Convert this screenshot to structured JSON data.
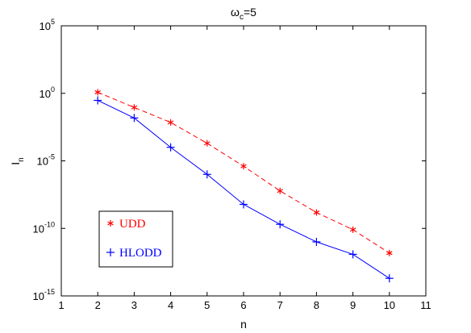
{
  "chart_data": {
    "type": "line",
    "title": "ω",
    "title_sub": "c",
    "title_suffix": "=5",
    "xlabel": "n",
    "ylabel": "I",
    "ylabel_sub": "n",
    "xlim": [
      1,
      11
    ],
    "ylim_exponent": [
      -15,
      5
    ],
    "yscale": "log",
    "x_ticks": [
      "1",
      "2",
      "3",
      "4",
      "5",
      "6",
      "7",
      "8",
      "9",
      "10",
      "11"
    ],
    "y_ticks": [
      {
        "exp": 5,
        "base": "10",
        "sup": "5"
      },
      {
        "exp": 0,
        "base": "10",
        "sup": "0"
      },
      {
        "exp": -5,
        "base": "10",
        "sup": "-5"
      },
      {
        "exp": -10,
        "base": "10",
        "sup": "-10"
      },
      {
        "exp": -15,
        "base": "10",
        "sup": "-15"
      }
    ],
    "grid": false,
    "legend_position": "lower-left",
    "x": [
      2,
      3,
      4,
      5,
      6,
      7,
      8,
      9,
      10
    ],
    "series": [
      {
        "name": "UDD",
        "color": "#ff0000",
        "line_style": "dashed",
        "marker": "*",
        "values": [
          1.2,
          0.09,
          0.007,
          0.0002,
          4e-06,
          6e-08,
          1.5e-09,
          8e-11,
          1.5e-12
        ]
      },
      {
        "name": "HLODD",
        "color": "#0000ff",
        "line_style": "solid",
        "marker": "+",
        "values": [
          0.3,
          0.015,
          0.0001,
          1e-06,
          6e-09,
          2e-10,
          1e-11,
          1.2e-12,
          2e-14
        ]
      }
    ]
  }
}
